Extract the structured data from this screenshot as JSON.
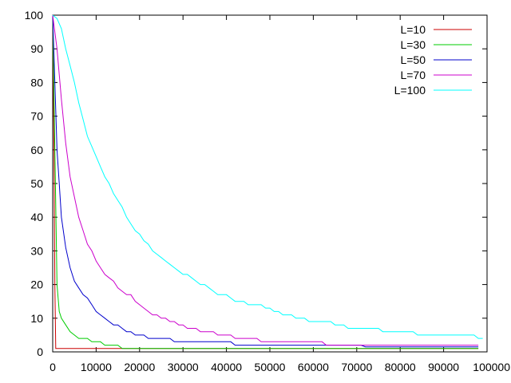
{
  "chart_data": {
    "type": "line",
    "title": "",
    "xlabel": "",
    "ylabel": "",
    "xlim": [
      0,
      100000
    ],
    "ylim": [
      0,
      100
    ],
    "x_ticks": [
      0,
      10000,
      20000,
      30000,
      40000,
      50000,
      60000,
      70000,
      80000,
      90000,
      100000
    ],
    "x_tick_labels": [
      "0",
      "10000",
      "20000",
      "30000",
      "40000",
      "50000",
      "60000",
      "70000",
      "80000",
      "90000",
      "100000"
    ],
    "y_ticks": [
      0,
      10,
      20,
      30,
      40,
      50,
      60,
      70,
      80,
      90,
      100
    ],
    "y_tick_labels": [
      "0",
      "10",
      "20",
      "30",
      "40",
      "50",
      "60",
      "70",
      "80",
      "90",
      "100"
    ],
    "grid": false,
    "legend_position": "top-right",
    "series": [
      {
        "name": "L=10",
        "color": "#cc0000",
        "points": [
          [
            0,
            100
          ],
          [
            300,
            60
          ],
          [
            500,
            20
          ],
          [
            700,
            1
          ],
          [
            98000,
            1
          ]
        ]
      },
      {
        "name": "L=30",
        "color": "#00cc00",
        "points": [
          [
            0,
            100
          ],
          [
            500,
            60
          ],
          [
            1000,
            20
          ],
          [
            1500,
            12
          ],
          [
            2000,
            10
          ],
          [
            3000,
            8
          ],
          [
            4000,
            6
          ],
          [
            5000,
            5
          ],
          [
            6000,
            4
          ],
          [
            8000,
            4
          ],
          [
            9000,
            3
          ],
          [
            11000,
            3
          ],
          [
            12000,
            2
          ],
          [
            15000,
            2
          ],
          [
            16000,
            1
          ],
          [
            98000,
            1
          ]
        ]
      },
      {
        "name": "L=50",
        "color": "#0000cc",
        "points": [
          [
            0,
            100
          ],
          [
            500,
            80
          ],
          [
            1000,
            60
          ],
          [
            1500,
            50
          ],
          [
            2000,
            40
          ],
          [
            3000,
            31
          ],
          [
            4000,
            25
          ],
          [
            5000,
            21
          ],
          [
            6000,
            19
          ],
          [
            7000,
            17
          ],
          [
            8000,
            16
          ],
          [
            9000,
            14
          ],
          [
            10000,
            12
          ],
          [
            11000,
            11
          ],
          [
            12000,
            10
          ],
          [
            13000,
            9
          ],
          [
            14000,
            8
          ],
          [
            15000,
            8
          ],
          [
            16000,
            7
          ],
          [
            17000,
            6
          ],
          [
            18000,
            6
          ],
          [
            19000,
            5
          ],
          [
            21000,
            5
          ],
          [
            22000,
            4
          ],
          [
            27000,
            4
          ],
          [
            28000,
            3
          ],
          [
            41000,
            3
          ],
          [
            42000,
            2
          ],
          [
            71000,
            2
          ],
          [
            72000,
            1.5
          ],
          [
            98000,
            1.5
          ]
        ]
      },
      {
        "name": "L=70",
        "color": "#cc00cc",
        "points": [
          [
            0,
            100
          ],
          [
            1000,
            90
          ],
          [
            2000,
            75
          ],
          [
            3000,
            62
          ],
          [
            4000,
            52
          ],
          [
            5000,
            46
          ],
          [
            6000,
            40
          ],
          [
            7000,
            36
          ],
          [
            8000,
            32
          ],
          [
            9000,
            30
          ],
          [
            10000,
            27
          ],
          [
            11000,
            25
          ],
          [
            12000,
            23
          ],
          [
            13000,
            22
          ],
          [
            14000,
            21
          ],
          [
            15000,
            19
          ],
          [
            16000,
            18
          ],
          [
            17000,
            17
          ],
          [
            18000,
            17
          ],
          [
            19000,
            15
          ],
          [
            20000,
            14
          ],
          [
            21000,
            13
          ],
          [
            22000,
            12
          ],
          [
            23000,
            11
          ],
          [
            24000,
            11
          ],
          [
            25000,
            10
          ],
          [
            26000,
            10
          ],
          [
            27000,
            9
          ],
          [
            28000,
            9
          ],
          [
            29000,
            8
          ],
          [
            30000,
            8
          ],
          [
            31000,
            7
          ],
          [
            33000,
            7
          ],
          [
            34000,
            6
          ],
          [
            37000,
            6
          ],
          [
            38000,
            5
          ],
          [
            41000,
            5
          ],
          [
            42000,
            4
          ],
          [
            47000,
            4
          ],
          [
            48000,
            3
          ],
          [
            62000,
            3
          ],
          [
            63000,
            2
          ],
          [
            98000,
            2
          ]
        ]
      },
      {
        "name": "L=100",
        "color": "#00ffff",
        "points": [
          [
            0,
            100
          ],
          [
            1000,
            99
          ],
          [
            2000,
            96
          ],
          [
            3000,
            90
          ],
          [
            4000,
            85
          ],
          [
            5000,
            80
          ],
          [
            6000,
            74
          ],
          [
            7000,
            69
          ],
          [
            8000,
            64
          ],
          [
            9000,
            61
          ],
          [
            10000,
            58
          ],
          [
            11000,
            55
          ],
          [
            12000,
            52
          ],
          [
            13000,
            50
          ],
          [
            14000,
            47
          ],
          [
            15000,
            45
          ],
          [
            16000,
            43
          ],
          [
            17000,
            40
          ],
          [
            18000,
            38
          ],
          [
            19000,
            36
          ],
          [
            20000,
            35
          ],
          [
            21000,
            33
          ],
          [
            22000,
            32
          ],
          [
            23000,
            30
          ],
          [
            24000,
            29
          ],
          [
            25000,
            28
          ],
          [
            26000,
            27
          ],
          [
            27000,
            26
          ],
          [
            28000,
            25
          ],
          [
            29000,
            24
          ],
          [
            30000,
            23
          ],
          [
            31000,
            23
          ],
          [
            32000,
            22
          ],
          [
            33000,
            21
          ],
          [
            34000,
            20
          ],
          [
            35000,
            20
          ],
          [
            36000,
            19
          ],
          [
            37000,
            18
          ],
          [
            38000,
            17
          ],
          [
            40000,
            17
          ],
          [
            41000,
            16
          ],
          [
            42000,
            15
          ],
          [
            44000,
            15
          ],
          [
            45000,
            14
          ],
          [
            48000,
            14
          ],
          [
            49000,
            13
          ],
          [
            50000,
            13
          ],
          [
            51000,
            12
          ],
          [
            52000,
            12
          ],
          [
            53000,
            11
          ],
          [
            55000,
            11
          ],
          [
            56000,
            10
          ],
          [
            58000,
            10
          ],
          [
            59000,
            9
          ],
          [
            64000,
            9
          ],
          [
            65000,
            8
          ],
          [
            67000,
            8
          ],
          [
            68000,
            7
          ],
          [
            75000,
            7
          ],
          [
            76000,
            6
          ],
          [
            83000,
            6
          ],
          [
            84000,
            5
          ],
          [
            97000,
            5
          ],
          [
            98000,
            4
          ],
          [
            99000,
            4
          ]
        ]
      }
    ]
  }
}
